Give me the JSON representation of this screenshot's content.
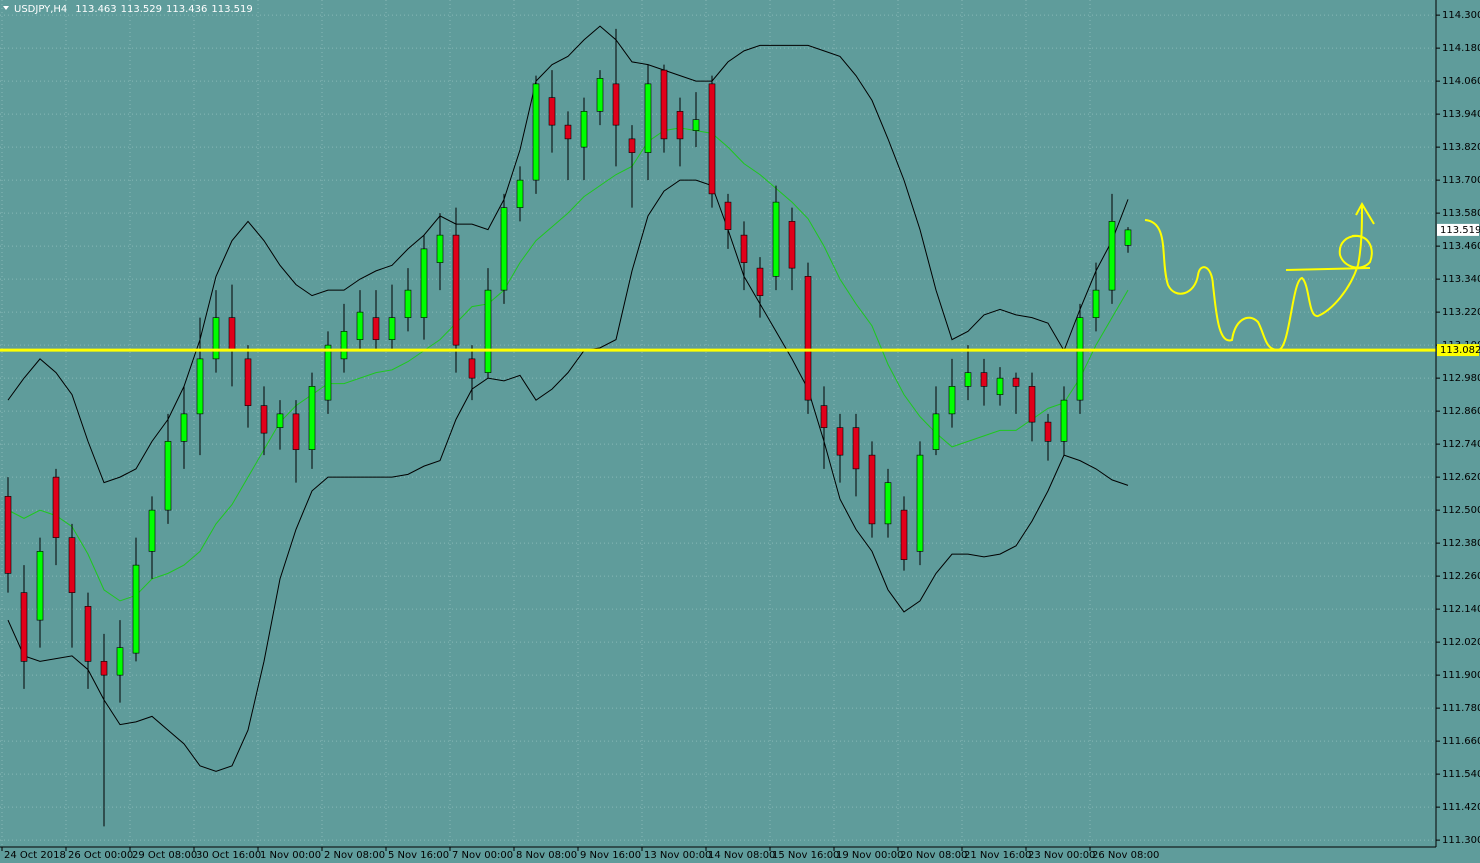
{
  "chart_data": {
    "type": "candlestick",
    "title": "USDJPY,H4",
    "background": "#5f9c9b",
    "up_color": "#00ff00",
    "down_color": "#e0001a",
    "wick_color": "#000000",
    "grid": true,
    "ylim": [
      111.275,
      114.355
    ],
    "yticks": [
      {
        "value": 114.3,
        "label": "114.300"
      },
      {
        "value": 114.18,
        "label": "114.180"
      },
      {
        "value": 114.06,
        "label": "114.060"
      },
      {
        "value": 113.94,
        "label": "113.940"
      },
      {
        "value": 113.82,
        "label": "113.820"
      },
      {
        "value": 113.7,
        "label": "113.700"
      },
      {
        "value": 113.58,
        "label": "113.580"
      },
      {
        "value": 113.46,
        "label": "113.460"
      },
      {
        "value": 113.34,
        "label": "113.340"
      },
      {
        "value": 113.22,
        "label": "113.220"
      },
      {
        "value": 113.1,
        "label": "113.100"
      },
      {
        "value": 112.98,
        "label": "112.980"
      },
      {
        "value": 112.86,
        "label": "112.860"
      },
      {
        "value": 112.74,
        "label": "112.740"
      },
      {
        "value": 112.62,
        "label": "112.620"
      },
      {
        "value": 112.5,
        "label": "112.500"
      },
      {
        "value": 112.38,
        "label": "112.380"
      },
      {
        "value": 112.26,
        "label": "112.260"
      },
      {
        "value": 112.14,
        "label": "112.140"
      },
      {
        "value": 112.02,
        "label": "112.020"
      },
      {
        "value": 111.9,
        "label": "111.900"
      },
      {
        "value": 111.78,
        "label": "111.780"
      },
      {
        "value": 111.66,
        "label": "111.660"
      },
      {
        "value": 111.54,
        "label": "111.540"
      },
      {
        "value": 111.42,
        "label": "111.420"
      },
      {
        "value": 111.3,
        "label": "111.300"
      }
    ],
    "categories": [
      "24 Oct 2018",
      null,
      null,
      null,
      "26 Oct 00:00",
      null,
      null,
      null,
      "29 Oct 08:00",
      null,
      null,
      null,
      "30 Oct 16:00",
      null,
      null,
      null,
      "1 Nov 00:00",
      null,
      null,
      null,
      "2 Nov 08:00",
      null,
      null,
      null,
      "5 Nov 16:00",
      null,
      null,
      null,
      "7 Nov 00:00",
      null,
      null,
      null,
      "8 Nov 08:00",
      null,
      null,
      null,
      "9 Nov 16:00",
      null,
      null,
      null,
      "13 Nov 00:00",
      null,
      null,
      null,
      "14 Nov 08:00",
      null,
      null,
      null,
      "15 Nov 16:00",
      null,
      null,
      null,
      "19 Nov 00:00",
      null,
      null,
      null,
      "20 Nov 08:00",
      null,
      null,
      null,
      "21 Nov 16:00",
      null,
      null,
      null,
      "23 Nov 00:00",
      null,
      null,
      null,
      "26 Nov 08:00",
      null,
      null
    ],
    "open": [
      112.55,
      112.2,
      112.1,
      112.62,
      112.4,
      112.15,
      111.95,
      111.9,
      111.98,
      112.35,
      112.5,
      112.75,
      112.85,
      113.05,
      113.2,
      113.05,
      112.88,
      112.8,
      112.85,
      112.72,
      112.9,
      113.05,
      113.12,
      113.2,
      113.12,
      113.2,
      113.2,
      113.4,
      113.5,
      113.05,
      113.0,
      113.3,
      113.6,
      113.7,
      114.0,
      113.9,
      113.82,
      113.95,
      114.05,
      113.85,
      113.8,
      114.1,
      113.95,
      113.88,
      114.05,
      113.62,
      113.5,
      113.38,
      113.35,
      113.55,
      113.35,
      112.88,
      112.8,
      112.8,
      112.7,
      112.45,
      112.5,
      112.35,
      112.72,
      112.85,
      112.95,
      113.0,
      112.92,
      112.98,
      112.95,
      112.82,
      112.75,
      112.9,
      113.2,
      113.3,
      113.463
    ],
    "high": [
      112.62,
      112.3,
      112.4,
      112.65,
      112.45,
      112.2,
      112.05,
      112.1,
      112.4,
      112.55,
      112.85,
      112.95,
      113.2,
      113.3,
      113.32,
      113.1,
      112.95,
      112.9,
      112.9,
      113.0,
      113.15,
      113.25,
      113.3,
      113.3,
      113.32,
      113.38,
      113.5,
      113.58,
      113.6,
      113.1,
      113.38,
      113.65,
      113.75,
      114.08,
      114.1,
      113.95,
      114.0,
      114.1,
      114.25,
      113.9,
      114.12,
      114.12,
      114.0,
      114.02,
      114.08,
      113.65,
      113.55,
      113.42,
      113.68,
      113.6,
      113.4,
      112.95,
      112.85,
      112.85,
      112.75,
      112.65,
      112.55,
      112.75,
      112.95,
      113.05,
      113.1,
      113.05,
      113.02,
      113.0,
      113.0,
      112.85,
      112.95,
      113.25,
      113.4,
      113.65,
      113.529
    ],
    "low": [
      112.2,
      111.85,
      112.0,
      112.3,
      112.0,
      111.85,
      111.35,
      111.8,
      111.95,
      112.25,
      112.45,
      112.65,
      112.7,
      113.0,
      112.95,
      112.8,
      112.7,
      112.72,
      112.6,
      112.65,
      112.85,
      113.0,
      113.08,
      113.08,
      113.08,
      113.15,
      113.12,
      113.3,
      113.0,
      112.9,
      112.98,
      113.25,
      113.55,
      113.65,
      113.8,
      113.7,
      113.7,
      113.9,
      113.75,
      113.6,
      113.7,
      113.8,
      113.75,
      113.82,
      113.6,
      113.45,
      113.3,
      113.2,
      113.3,
      113.3,
      112.85,
      112.65,
      112.6,
      112.55,
      112.4,
      112.4,
      112.28,
      112.3,
      112.7,
      112.8,
      112.9,
      112.88,
      112.88,
      112.85,
      112.75,
      112.68,
      112.7,
      112.85,
      113.15,
      113.25,
      113.436
    ],
    "close": [
      112.27,
      111.95,
      112.35,
      112.4,
      112.2,
      111.95,
      111.9,
      112.0,
      112.3,
      112.5,
      112.75,
      112.85,
      113.05,
      113.2,
      113.08,
      112.88,
      112.78,
      112.85,
      112.72,
      112.95,
      113.1,
      113.15,
      113.22,
      113.12,
      113.2,
      113.3,
      113.45,
      113.5,
      113.1,
      112.98,
      113.3,
      113.6,
      113.7,
      114.05,
      113.9,
      113.85,
      113.95,
      114.07,
      113.9,
      113.8,
      114.05,
      113.85,
      113.85,
      113.92,
      113.65,
      113.52,
      113.4,
      113.28,
      113.62,
      113.38,
      112.9,
      112.8,
      112.7,
      112.65,
      112.45,
      112.6,
      112.32,
      112.7,
      112.85,
      112.95,
      113.0,
      112.95,
      112.98,
      112.95,
      112.82,
      112.75,
      112.9,
      113.2,
      113.3,
      113.55,
      113.519
    ],
    "bands": [
      {
        "color": "#000000",
        "values": [
          112.9,
          112.98,
          113.05,
          113.0,
          112.92,
          112.75,
          112.6,
          112.62,
          112.65,
          112.75,
          112.83,
          112.95,
          113.12,
          113.35,
          113.48,
          113.55,
          113.48,
          113.39,
          113.32,
          113.28,
          113.3,
          113.3,
          113.34,
          113.37,
          113.39,
          113.45,
          113.5,
          113.57,
          113.54,
          113.54,
          113.52,
          113.63,
          113.81,
          114.06,
          114.12,
          114.15,
          114.21,
          114.26,
          114.21,
          114.13,
          114.12,
          114.1,
          114.08,
          114.06,
          114.06,
          114.13,
          114.17,
          114.19,
          114.19,
          114.19,
          114.19,
          114.17,
          114.15,
          114.08,
          113.99,
          113.85,
          113.7,
          113.52,
          113.3,
          113.12,
          113.15,
          113.21,
          113.23,
          113.21,
          113.2,
          113.18,
          113.08,
          113.23,
          113.37,
          113.48,
          113.63
        ]
      },
      {
        "color": "#1ec81e",
        "values": [
          112.5,
          112.47,
          112.5,
          112.48,
          112.44,
          112.34,
          112.21,
          112.17,
          112.19,
          112.25,
          112.27,
          112.3,
          112.35,
          112.45,
          112.52,
          112.62,
          112.72,
          112.82,
          112.88,
          112.92,
          112.96,
          112.96,
          112.98,
          113.0,
          113.01,
          113.04,
          113.08,
          113.12,
          113.18,
          113.24,
          113.25,
          113.3,
          113.4,
          113.48,
          113.53,
          113.58,
          113.64,
          113.68,
          113.72,
          113.75,
          113.84,
          113.88,
          113.89,
          113.88,
          113.87,
          113.82,
          113.76,
          113.72,
          113.67,
          113.62,
          113.56,
          113.46,
          113.34,
          113.25,
          113.17,
          113.03,
          112.92,
          112.84,
          112.78,
          112.73,
          112.75,
          112.77,
          112.79,
          112.79,
          112.83,
          112.87,
          112.89,
          112.98,
          113.1,
          113.2,
          113.3
        ]
      },
      {
        "color": "#000000",
        "values": [
          112.1,
          111.97,
          111.95,
          111.96,
          111.97,
          111.92,
          111.81,
          111.72,
          111.73,
          111.75,
          111.7,
          111.65,
          111.57,
          111.55,
          111.57,
          111.7,
          111.95,
          112.25,
          112.43,
          112.57,
          112.62,
          112.62,
          112.62,
          112.62,
          112.62,
          112.63,
          112.66,
          112.68,
          112.83,
          112.94,
          112.98,
          112.97,
          112.99,
          112.9,
          112.94,
          113.0,
          113.08,
          113.09,
          113.12,
          113.37,
          113.57,
          113.66,
          113.7,
          113.7,
          113.68,
          113.52,
          113.35,
          113.25,
          113.15,
          113.05,
          112.94,
          112.75,
          112.54,
          112.43,
          112.35,
          112.21,
          112.13,
          112.17,
          112.27,
          112.34,
          112.34,
          112.33,
          112.34,
          112.37,
          112.46,
          112.57,
          112.7,
          112.68,
          112.65,
          112.61,
          112.59
        ]
      }
    ],
    "hline": {
      "value": 113.082,
      "label": "113.082",
      "color": "#ffff00"
    }
  }
}
